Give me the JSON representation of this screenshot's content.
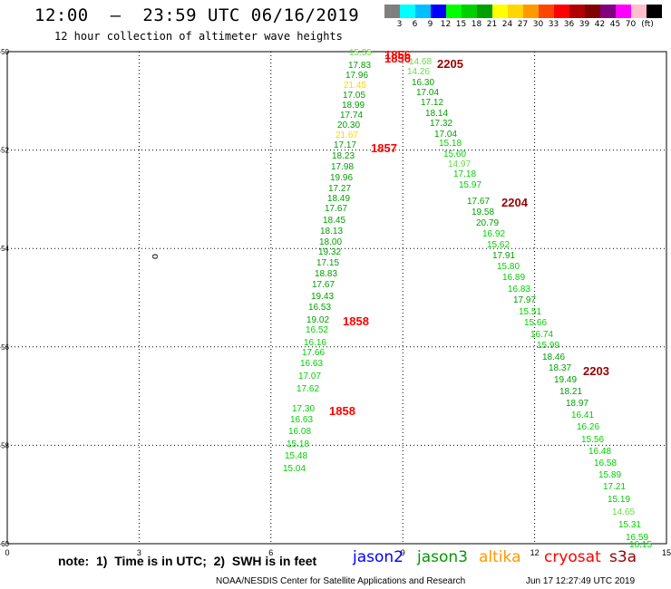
{
  "title": "12:00  –  23:59 UTC 06/16/2019",
  "subtitle": "12 hour collection of altimeter wave heights",
  "colorbar": {
    "unit": "(ft)",
    "colors": [
      "#7f7f7f",
      "#00ffff",
      "#00bfff",
      "#0000ff",
      "#00ff00",
      "#00d000",
      "#00a000",
      "#ffff00",
      "#ffd700",
      "#ff9900",
      "#ff4500",
      "#ff0000",
      "#b00000",
      "#800000",
      "#800080",
      "#ff00ff",
      "#ffc0cb",
      "#000000"
    ],
    "labels": [
      "3",
      "6",
      "9",
      "12",
      "15",
      "18",
      "21",
      "24",
      "27",
      "30",
      "33",
      "36",
      "39",
      "42",
      "45",
      "70"
    ]
  },
  "axes": {
    "x_ticks": [
      "0",
      "3",
      "6",
      "9",
      "12",
      "15"
    ],
    "y_ticks": [
      "-50",
      "-52",
      "-54",
      "-56",
      "-58",
      "-60"
    ],
    "mark": "o"
  },
  "note": "note:  1)  Time is in UTC;  2)  SWH is in feet",
  "legend": [
    {
      "name": "jason2",
      "color": "#0000ff"
    },
    {
      "name": "jason3",
      "color": "#009900"
    },
    {
      "name": "altika",
      "color": "#ff9900"
    },
    {
      "name": "cryosat",
      "color": "#ff0000"
    },
    {
      "name": "s3a",
      "color": "#990000"
    }
  ],
  "footer": "NOAA/NESDIS Center for Satellite Applications and Research",
  "footer_time": "Jun 17 12:27:49 UTC 2019",
  "chart_data": {
    "type": "scatter",
    "xlim": [
      0,
      15
    ],
    "ylim": [
      -60,
      -50
    ],
    "xlabel": "",
    "ylabel": "",
    "track_left": {
      "values": [
        "15.35",
        "17.83",
        "17.96",
        "21.45",
        "17.05",
        "18.99",
        "17.74",
        "20.30",
        "21.67",
        "17.17",
        "18.23",
        "17.98",
        "19.96",
        "17.27",
        "18.49",
        "17.67",
        "18.45",
        "18.13",
        "18.00",
        "19.32",
        "17.15",
        "18.83",
        "17.67",
        "19.43",
        "16.53",
        "19.02",
        "16.52",
        "16.16",
        "17.66",
        "16.63",
        "17.07",
        "17.62",
        "17.30",
        "16.63",
        "16.08",
        "15.18",
        "15.48",
        "15.04"
      ],
      "colors": [
        "#66dd44",
        "#00a000",
        "#00a000",
        "#ffd700",
        "#00a000",
        "#00a000",
        "#00a000",
        "#00a000",
        "#ffd700",
        "#00a000",
        "#00a000",
        "#00a000",
        "#00a000",
        "#00a000",
        "#00a000",
        "#00a000",
        "#00a000",
        "#00a000",
        "#00a000",
        "#00a000",
        "#00a000",
        "#00a000",
        "#00a000",
        "#00a000",
        "#00a000",
        "#00a000",
        "#00d000",
        "#00d000",
        "#00d000",
        "#00d000",
        "#00d000",
        "#00d000",
        "#00d000",
        "#00d000",
        "#00d000",
        "#00d000",
        "#00d000",
        "#00d000"
      ]
    },
    "track_right": {
      "values": [
        "14.68",
        "14.26",
        "16.30",
        "17.04",
        "17.12",
        "18.14",
        "17.32",
        "17.04",
        "15.18",
        "15.60",
        "14.97",
        "17.18",
        "15.97",
        "17.67",
        "19.58",
        "20.79",
        "16.92",
        "15.62",
        "17.91",
        "15.80",
        "16.89",
        "16.83",
        "17.97",
        "15.51",
        "15.66",
        "16.74",
        "15.99",
        "18.46",
        "18.37",
        "19.49",
        "18.21",
        "18.97",
        "16.41",
        "16.26",
        "15.56",
        "16.48",
        "16.58",
        "15.89",
        "17.21",
        "15.19",
        "14.65",
        "15.31",
        "16.59",
        "16.15"
      ],
      "colors": [
        "#66dd44",
        "#66dd44",
        "#00a000",
        "#00a000",
        "#00a000",
        "#00a000",
        "#00a000",
        "#00a000",
        "#00d000",
        "#00d000",
        "#66dd44",
        "#00d000",
        "#00d000",
        "#00a000",
        "#00a000",
        "#00a000",
        "#00d000",
        "#00d000",
        "#00a000",
        "#00d000",
        "#00d000",
        "#00d000",
        "#00a000",
        "#00d000",
        "#00d000",
        "#00d000",
        "#00d000",
        "#00a000",
        "#00a000",
        "#00a000",
        "#00a000",
        "#00a000",
        "#00d000",
        "#00d000",
        "#00d000",
        "#00d000",
        "#00d000",
        "#00d000",
        "#00d000",
        "#00d000",
        "#66dd44",
        "#00d000",
        "#00d000",
        "#00d000"
      ]
    },
    "time_labels": [
      {
        "text": "1856",
        "color": "#ff0000"
      },
      {
        "text": "1856",
        "color": "#ff0000"
      },
      {
        "text": "2205",
        "color": "#990000"
      },
      {
        "text": "1857",
        "color": "#ff0000"
      },
      {
        "text": "2204",
        "color": "#990000"
      },
      {
        "text": "1858",
        "color": "#ff0000"
      },
      {
        "text": "2203",
        "color": "#990000"
      },
      {
        "text": "1858",
        "color": "#ff0000"
      }
    ]
  }
}
